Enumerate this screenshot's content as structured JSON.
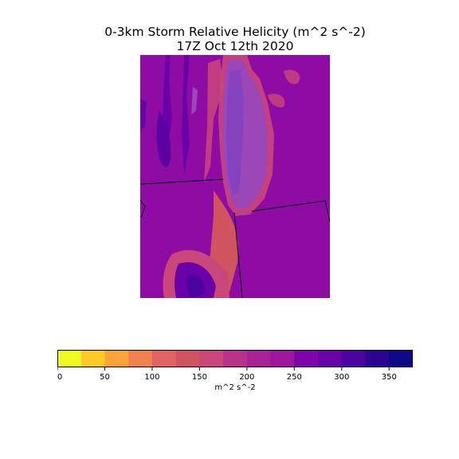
{
  "title": {
    "line1": "0-3km Storm Relative Helicity (m^2 s^-2)",
    "line2": "17Z Oct 12th 2020"
  },
  "map": {
    "background_color": "#8e0ca4",
    "lake_color": "#9b47b8",
    "lake_inner_color": "#8f44c0",
    "border_color": "#000000"
  },
  "colorbar": {
    "label": "m^2 s^-2",
    "min": 0,
    "max": 375,
    "step": 25,
    "colors": [
      "#f0f921",
      "#fdca26",
      "#fba238",
      "#f1814d",
      "#e16462",
      "#d0545f",
      "#c9477a",
      "#b83289",
      "#a82296",
      "#9c179e",
      "#7e03a8",
      "#6a00a8",
      "#4c02a1",
      "#2a0593",
      "#0d0887"
    ],
    "ticks": [
      0,
      50,
      100,
      150,
      200,
      250,
      300,
      350
    ]
  }
}
